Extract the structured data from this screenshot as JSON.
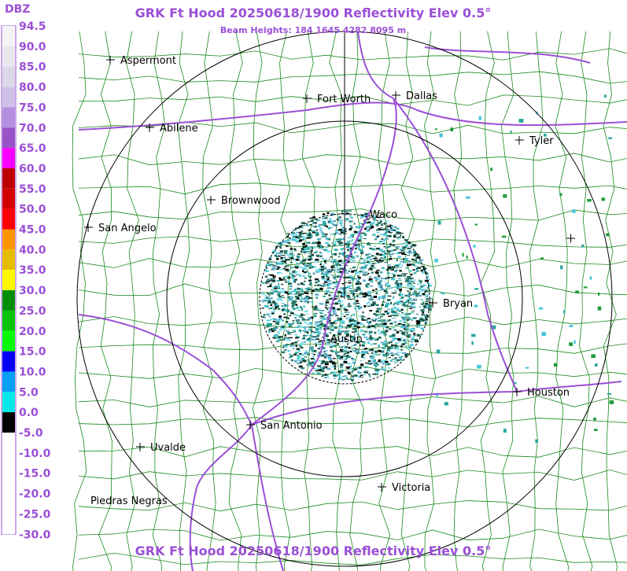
{
  "header": {
    "title": "GRK Ft Hood 20250618/1900 Reflectivity Elev 0.5°",
    "subtitle": "Beam Heights: 184 1645 4282 8095 m"
  },
  "footer": {
    "title": "GRK Ft Hood 20250618/1900 Reflectivity Elev 0.5°"
  },
  "legend": {
    "title": "DBZ",
    "labels": [
      "94.5",
      "90.0",
      "85.0",
      "80.0",
      "75.0",
      "70.0",
      "65.0",
      "60.0",
      "55.0",
      "50.0",
      "45.0",
      "40.0",
      "35.0",
      "30.0",
      "25.0",
      "20.0",
      "15.0",
      "10.0",
      "5.0",
      "0.0",
      "-5.0",
      "-10.0",
      "-15.0",
      "-20.0",
      "-25.0",
      "-30.0"
    ]
  },
  "cities": [
    {
      "name": "Aspermont"
    },
    {
      "name": "Abilene"
    },
    {
      "name": "Fort Worth"
    },
    {
      "name": "Dallas"
    },
    {
      "name": "Tyler"
    },
    {
      "name": "Brownwood"
    },
    {
      "name": "San Angelo"
    },
    {
      "name": "Waco"
    },
    {
      "name": "Bryan"
    },
    {
      "name": "Austin"
    },
    {
      "name": "Houston"
    },
    {
      "name": "San Antonio"
    },
    {
      "name": "Uvalde"
    },
    {
      "name": "Piedras Negras"
    },
    {
      "name": "Victoria"
    }
  ]
}
